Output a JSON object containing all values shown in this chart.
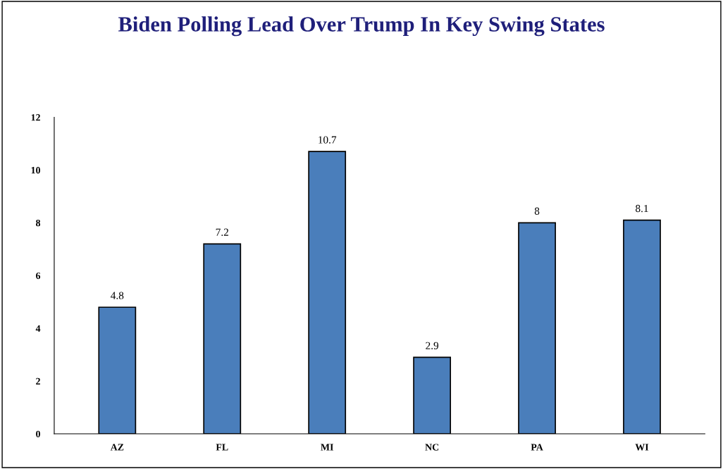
{
  "chart_data": {
    "type": "bar",
    "title": "Biden Polling Lead Over Trump In Key Swing States",
    "categories": [
      "AZ",
      "FL",
      "MI",
      "NC",
      "PA",
      "WI"
    ],
    "values": [
      4.8,
      7.2,
      10.7,
      2.9,
      8,
      8.1
    ],
    "color": "#4a7ebb",
    "ylim": [
      0,
      12
    ],
    "yticks": [
      0,
      2,
      4,
      6,
      8,
      10,
      12
    ],
    "grid": false,
    "legend": false,
    "data_labels": true
  }
}
